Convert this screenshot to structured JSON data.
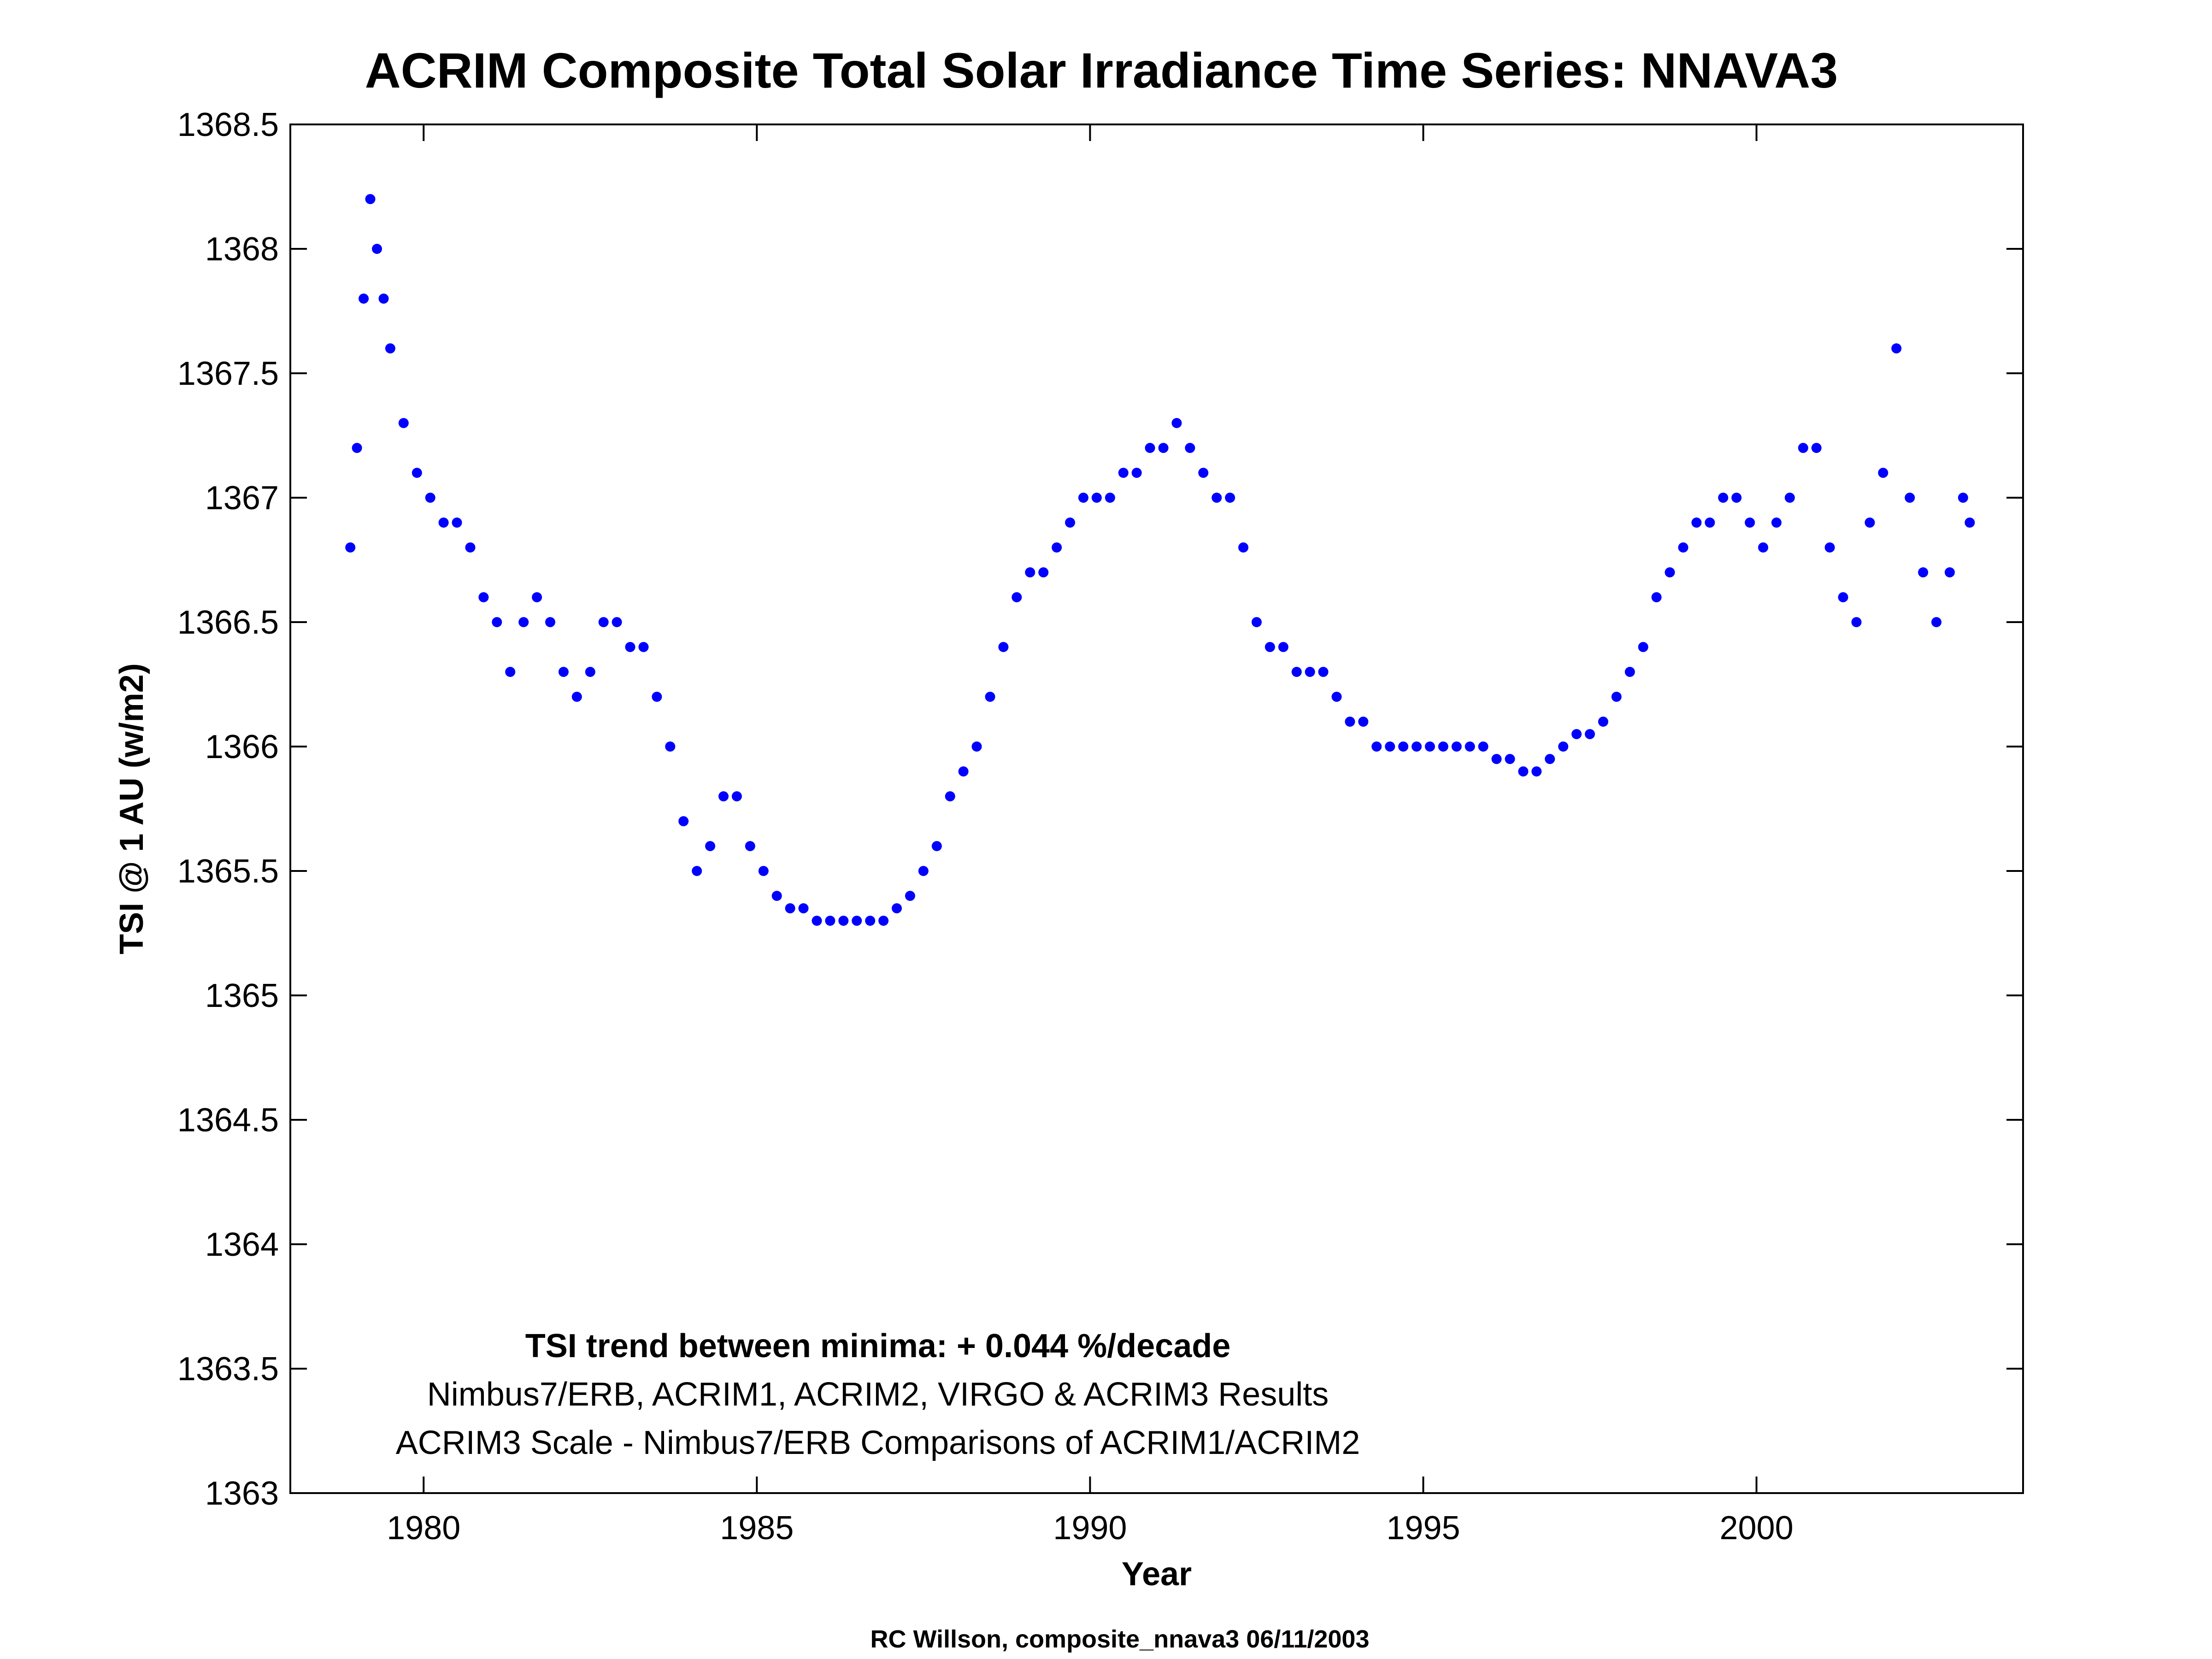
{
  "chart_data": {
    "type": "scatter",
    "title": "ACRIM Composite Total Solar Irradiance Time Series: NNAVA3",
    "xlabel": "Year",
    "ylabel": "TSI @ 1 AU (w/m2)",
    "xlim": [
      1978,
      2004
    ],
    "ylim": [
      1363,
      1368.5
    ],
    "x_ticks": [
      1980,
      1985,
      1990,
      1995,
      2000
    ],
    "y_ticks": [
      1363,
      1363.5,
      1364,
      1364.5,
      1365,
      1365.5,
      1366,
      1366.5,
      1367,
      1367.5,
      1368,
      1368.5
    ],
    "grid": false,
    "point_color": "#0000ff",
    "annotations": [
      "TSI trend between minima: + 0.044 %/decade",
      "Nimbus7/ERB, ACRIM1, ACRIM2, VIRGO & ACRIM3 Results",
      "ACRIM3 Scale - Nimbus7/ERB Comparisons of ACRIM1/ACRIM2"
    ],
    "footer": "RC Willson, composite_nnava3  06/11/2003",
    "series": [
      {
        "x": [
          1978.9,
          1979.0,
          1979.1,
          1979.2,
          1979.3,
          1979.4,
          1979.5,
          1979.7,
          1979.9,
          1980.1,
          1980.3,
          1980.5,
          1980.7,
          1980.9,
          1981.1,
          1981.3,
          1981.5,
          1981.7,
          1981.9,
          1982.1,
          1982.3,
          1982.5,
          1982.7,
          1982.9,
          1983.1,
          1983.3,
          1983.5,
          1983.7,
          1983.9,
          1984.1,
          1984.3,
          1984.5,
          1984.7,
          1984.9,
          1985.1,
          1985.3,
          1985.5,
          1985.7,
          1985.9,
          1986.1,
          1986.3,
          1986.5,
          1986.7,
          1986.9,
          1987.1,
          1987.3,
          1987.5,
          1987.7,
          1987.9,
          1988.1,
          1988.3,
          1988.5,
          1988.7,
          1988.9,
          1989.1,
          1989.3,
          1989.5,
          1989.7,
          1989.9,
          1990.1,
          1990.3,
          1990.5,
          1990.7,
          1990.9,
          1991.1,
          1991.3,
          1991.5,
          1991.7,
          1991.9,
          1992.1,
          1992.3,
          1992.5,
          1992.7,
          1992.9,
          1993.1,
          1993.3,
          1993.5,
          1993.7,
          1993.9,
          1994.1,
          1994.3,
          1994.5,
          1994.7,
          1994.9,
          1995.1,
          1995.3,
          1995.5,
          1995.7,
          1995.9,
          1996.1,
          1996.3,
          1996.5,
          1996.7,
          1996.9,
          1997.1,
          1997.3,
          1997.5,
          1997.7,
          1997.9,
          1998.1,
          1998.3,
          1998.5,
          1998.7,
          1998.9,
          1999.1,
          1999.3,
          1999.5,
          1999.7,
          1999.9,
          2000.1,
          2000.3,
          2000.5,
          2000.7,
          2000.9,
          2001.1,
          2001.3,
          2001.5,
          2001.7,
          2001.9,
          2002.1,
          2002.3,
          2002.5,
          2002.7,
          2002.9,
          2003.1,
          2003.2
        ],
        "y": [
          1366.8,
          1367.2,
          1367.8,
          1368.2,
          1368.0,
          1367.8,
          1367.6,
          1367.3,
          1367.1,
          1367.0,
          1366.9,
          1366.9,
          1366.8,
          1366.6,
          1366.5,
          1366.3,
          1366.5,
          1366.6,
          1366.5,
          1366.3,
          1366.2,
          1366.3,
          1366.5,
          1366.5,
          1366.4,
          1366.4,
          1366.2,
          1366.0,
          1365.7,
          1365.5,
          1365.6,
          1365.8,
          1365.8,
          1365.6,
          1365.5,
          1365.4,
          1365.35,
          1365.35,
          1365.3,
          1365.3,
          1365.3,
          1365.3,
          1365.3,
          1365.3,
          1365.35,
          1365.4,
          1365.5,
          1365.6,
          1365.8,
          1365.9,
          1366.0,
          1366.2,
          1366.4,
          1366.6,
          1366.7,
          1366.7,
          1366.8,
          1366.9,
          1367.0,
          1367.0,
          1367.0,
          1367.1,
          1367.1,
          1367.2,
          1367.2,
          1367.3,
          1367.2,
          1367.1,
          1367.0,
          1367.0,
          1366.8,
          1366.5,
          1366.4,
          1366.4,
          1366.3,
          1366.3,
          1366.3,
          1366.2,
          1366.1,
          1366.1,
          1366.0,
          1366.0,
          1366.0,
          1366.0,
          1366.0,
          1366.0,
          1366.0,
          1366.0,
          1366.0,
          1365.95,
          1365.95,
          1365.9,
          1365.9,
          1365.95,
          1366.0,
          1366.05,
          1366.05,
          1366.1,
          1366.2,
          1366.3,
          1366.4,
          1366.6,
          1366.7,
          1366.8,
          1366.9,
          1366.9,
          1367.0,
          1367.0,
          1366.9,
          1366.8,
          1366.9,
          1367.0,
          1367.2,
          1367.2,
          1366.8,
          1366.6,
          1366.5,
          1366.9,
          1367.1,
          1367.6,
          1367.0,
          1366.7,
          1366.5,
          1366.7,
          1367.0,
          1366.9
        ]
      }
    ]
  }
}
